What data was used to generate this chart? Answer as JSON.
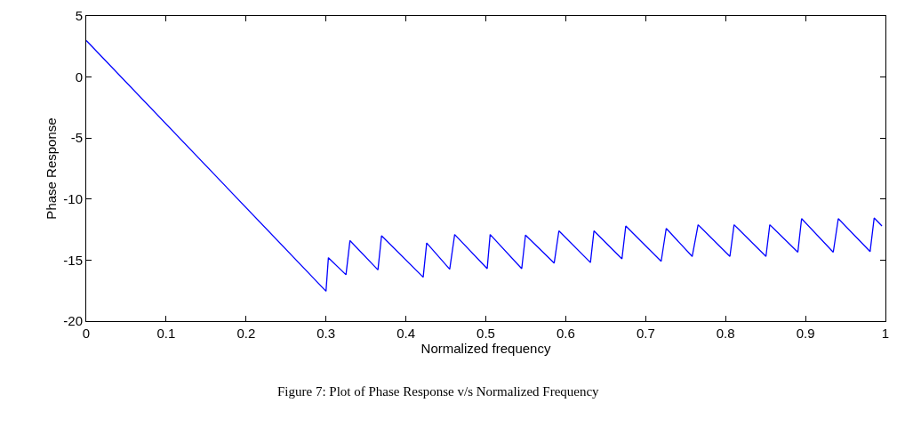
{
  "chart_data": {
    "type": "line",
    "xlabel": "Normalized frequency",
    "ylabel": "Phase Response",
    "annotations": [
      "Figure 7: Plot of Phase Response v/s Normalized Frequency"
    ],
    "x": [
      0,
      0.3,
      0.303,
      0.325,
      0.33,
      0.365,
      0.3695,
      0.4216,
      0.426,
      0.4548,
      0.461,
      0.5017,
      0.5054,
      0.5449,
      0.5496,
      0.5855,
      0.5914,
      0.6309,
      0.6353,
      0.6703,
      0.6751,
      0.7194,
      0.7257,
      0.7582,
      0.7656,
      0.8054,
      0.8106,
      0.8505,
      0.8553,
      0.8904,
      0.8951,
      0.9347,
      0.941,
      0.9808,
      0.9859,
      0.9956
    ],
    "series": [
      {
        "color": "#0000ff",
        "values": [
          3.0,
          -17.55,
          -14.8,
          -16.2,
          -13.4,
          -15.8,
          -13.0,
          -16.4,
          -13.6,
          -15.75,
          -12.9,
          -15.7,
          -12.9,
          -15.7,
          -12.95,
          -15.25,
          -12.6,
          -15.2,
          -12.6,
          -14.9,
          -12.2,
          -15.1,
          -12.4,
          -14.7,
          -12.1,
          -14.7,
          -12.1,
          -14.7,
          -12.1,
          -14.35,
          -11.6,
          -14.35,
          -11.6,
          -14.3,
          -11.55,
          -12.2
        ]
      }
    ],
    "xlim": [
      0,
      1
    ],
    "xticks": [
      0,
      0.1,
      0.2,
      0.3,
      0.4,
      0.5,
      0.6,
      0.7,
      0.8,
      0.9,
      1
    ],
    "ylim": [
      -20,
      5
    ],
    "yticks": [
      -20,
      -15,
      -10,
      -5,
      0,
      5
    ],
    "marker": "none",
    "line_style": "solid"
  }
}
